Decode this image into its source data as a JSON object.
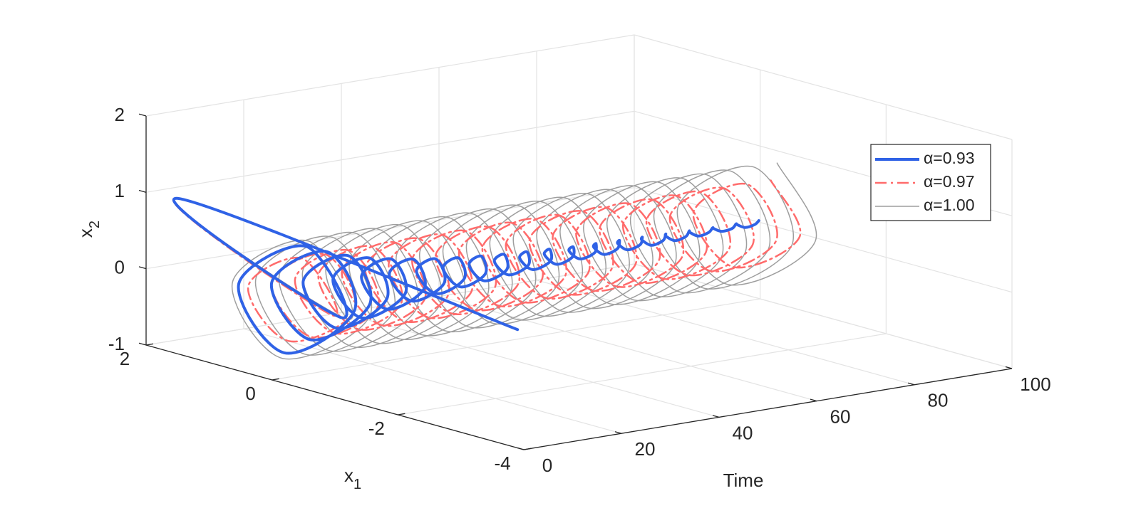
{
  "chart_data": {
    "type": "line3d",
    "xlabel": "Time",
    "ylabel": {
      "base": "x",
      "sub": "1"
    },
    "zlabel": {
      "base": "x",
      "sub": "2"
    },
    "xlim": [
      0,
      100
    ],
    "xticks": [
      0,
      20,
      40,
      60,
      80,
      100
    ],
    "ylim": [
      -4,
      2
    ],
    "yticks": [
      -4,
      -2,
      0,
      2
    ],
    "zlim": [
      -1,
      2
    ],
    "zticks": [
      -1,
      0,
      1,
      2
    ],
    "grid": true,
    "legend": "northeast",
    "x": [
      0,
      1.2,
      2.4,
      3.6,
      4.8,
      6,
      7.2,
      8.4,
      9.6,
      10.8,
      12,
      13.2,
      14.4,
      15.6,
      16.8,
      18,
      19.2,
      20.4,
      21.6,
      22.8,
      24,
      25.2,
      26.4,
      27.6,
      28.8,
      30,
      31.2,
      32.4,
      33.6,
      34.8,
      36,
      37.2,
      38.4,
      39.6,
      40.8,
      42,
      43.2,
      44.4,
      45.6,
      46.8,
      48,
      49.2,
      50.4,
      51.6,
      52.8,
      54,
      55.2,
      56.4,
      57.6,
      58.8,
      60,
      61.2,
      62.4,
      63.6,
      64.8,
      66,
      67.2,
      68.4,
      69.6,
      70.8,
      72,
      73.2,
      74.4,
      75.6,
      76.8,
      78,
      79.2,
      80.4,
      81.6,
      82.8,
      84,
      85.2,
      86.4,
      87.6,
      88.8,
      90,
      91.2,
      92.4,
      93.6,
      94.8,
      96,
      97.2,
      98.4,
      99.6
    ],
    "series": [
      {
        "name": "α=1.00",
        "color": "#9e9e9e",
        "linestyle": "solid",
        "linewidth": 1.5,
        "y": [
          -3.9,
          1.6,
          -1,
          -0.3,
          1,
          0.3,
          -1,
          -0.3,
          1,
          0.3,
          -1,
          -0.3,
          1,
          0.3,
          -1,
          -0.3,
          1,
          0.3,
          -1,
          -0.3,
          1,
          0.3,
          -1,
          -0.3,
          1,
          0.3,
          -1,
          -0.3,
          1,
          0.3,
          -1,
          -0.3,
          1,
          0.3,
          -1,
          -0.3,
          1,
          0.3,
          -1,
          -0.3,
          1,
          0.3,
          -1,
          -0.3,
          1,
          0.3,
          -1,
          -0.3,
          1,
          0.3,
          -1,
          -0.3,
          1,
          0.3,
          -1,
          -0.3,
          1,
          0.3,
          -1,
          -0.3,
          1,
          0.3,
          -1,
          -0.3,
          1,
          0.3,
          -1,
          -0.3,
          1,
          0.3,
          -1,
          -0.3,
          1,
          0.3,
          -1,
          -0.3,
          1,
          0.3,
          -1,
          -0.3,
          1,
          0.3,
          -1,
          -0.3
        ],
        "z": [
          0.55,
          1,
          0,
          0.85,
          0,
          -0.85,
          0,
          0.85,
          0,
          -0.85,
          0,
          0.85,
          0,
          -0.85,
          0,
          0.85,
          0,
          -0.85,
          0,
          0.85,
          0,
          -0.85,
          0,
          0.85,
          0,
          -0.85,
          0,
          0.85,
          0,
          -0.85,
          0,
          0.85,
          0,
          -0.85,
          0,
          0.85,
          0,
          -0.85,
          0,
          0.85,
          0,
          -0.85,
          0,
          0.85,
          0,
          -0.85,
          0,
          0.85,
          0,
          -0.85,
          0,
          0.85,
          0,
          -0.85,
          0,
          0.85,
          0,
          -0.85,
          0,
          0.85,
          0,
          -0.85,
          0,
          0.85,
          0,
          -0.85,
          0,
          0.85,
          0,
          -0.85,
          0,
          0.85,
          0,
          -0.85,
          0,
          0.85,
          0,
          -0.85,
          0,
          0.85,
          0,
          -0.85,
          0,
          0.85,
          0,
          -0.85,
          0,
          0.85
        ]
      },
      {
        "name": "α=0.97",
        "color": "#ff6b6b",
        "linestyle": "dashdot",
        "linewidth": 2.5,
        "y": [
          -3.9,
          1.6,
          -0.75,
          -0.2,
          0.75,
          0.2,
          -0.75,
          -0.2,
          0.75,
          0.2,
          -0.75,
          -0.2,
          0.75,
          0.2,
          -0.75,
          -0.2,
          0.75,
          0.2,
          -0.75,
          -0.2,
          0.75,
          0.2,
          -0.75,
          -0.2,
          0.75,
          0.2,
          -0.75,
          -0.2,
          0.75,
          0.2,
          -0.75,
          -0.2,
          0.75,
          0.2,
          -0.75,
          -0.2,
          0.75,
          0.2,
          -0.75,
          -0.2,
          0.75,
          0.2,
          -0.75,
          -0.2,
          0.75,
          0.2,
          -0.75,
          -0.2,
          0.75,
          0.2,
          -0.75,
          -0.2,
          0.75,
          0.2,
          -0.75,
          -0.2,
          0.75,
          0.2,
          -0.75,
          -0.2,
          0.75,
          0.2,
          -0.75,
          -0.2,
          0.75,
          0.2,
          -0.75,
          -0.2,
          0.75,
          0.2,
          -0.75,
          -0.2,
          0.75,
          0.2,
          -0.75,
          -0.2,
          0.75,
          0.2,
          -0.75,
          -0.2,
          0.75,
          0.2,
          -0.75,
          -0.2
        ],
        "z": [
          0.55,
          1,
          0,
          0.6,
          0,
          -0.6,
          0,
          0.6,
          0,
          -0.6,
          0,
          0.6,
          0,
          -0.6,
          0,
          0.6,
          0,
          -0.6,
          0,
          0.6,
          0,
          -0.6,
          0,
          0.6,
          0,
          -0.6,
          0,
          0.6,
          0,
          -0.6,
          0,
          0.6,
          0,
          -0.6,
          0,
          0.6,
          0,
          -0.6,
          0,
          0.6,
          0,
          -0.6,
          0,
          0.6,
          0,
          -0.6,
          0,
          0.6,
          0,
          -0.6,
          0,
          0.6,
          0,
          -0.6,
          0,
          0.6,
          0,
          -0.6,
          0,
          0.6,
          0,
          -0.6,
          0,
          0.6,
          0,
          -0.6,
          0,
          0.6,
          0,
          -0.6,
          0,
          0.6,
          0,
          -0.6,
          0,
          0.6,
          0,
          -0.6,
          0,
          0.6,
          0,
          -0.6,
          0,
          0.6,
          0,
          -0.6,
          0,
          0.6
        ]
      },
      {
        "name": "α=0.93",
        "color": "#2f62e6",
        "linestyle": "solid",
        "linewidth": 4,
        "y": [
          -3.9,
          1.6,
          -0.9,
          -0.27,
          0.9,
          0.27,
          -0.75,
          -0.23,
          0.75,
          0.23,
          -0.62,
          -0.19,
          0.62,
          0.19,
          -0.52,
          -0.16,
          0.52,
          0.16,
          -0.44,
          -0.13,
          0.44,
          0.13,
          -0.37,
          -0.11,
          0.37,
          0.11,
          -0.31,
          -0.09,
          0.31,
          0.09,
          -0.26,
          -0.08,
          0.26,
          0.08,
          -0.22,
          -0.07,
          0.22,
          0.07,
          -0.19,
          -0.06,
          0.19,
          0.06,
          -0.16,
          -0.05,
          0.16,
          0.05,
          -0.14,
          -0.04,
          0.14,
          0.04,
          -0.12,
          -0.04,
          0.12,
          0.04,
          -0.1,
          -0.03,
          0.1,
          0.03,
          -0.09,
          -0.03,
          0.09,
          0.03,
          -0.08,
          -0.02,
          0.08,
          0.02,
          -0.07,
          -0.02,
          0.07,
          0.02,
          -0.06,
          -0.02,
          0.06,
          0.02,
          -0.05,
          -0.02,
          0.05,
          0.02,
          -0.05,
          -0.02,
          0.05,
          0.02,
          -0.04,
          -0.01
        ],
        "z": [
          0.55,
          1,
          0,
          0.77,
          0,
          -0.77,
          0,
          0.64,
          0,
          -0.64,
          0,
          0.53,
          0,
          -0.53,
          0,
          0.44,
          0,
          -0.44,
          0,
          0.37,
          0,
          -0.37,
          0,
          0.31,
          0,
          -0.31,
          0,
          0.26,
          0,
          -0.26,
          0,
          0.22,
          0,
          -0.22,
          0,
          0.19,
          0,
          -0.19,
          0,
          0.16,
          0,
          -0.16,
          0,
          0.14,
          0,
          -0.14,
          0,
          0.12,
          0,
          -0.12,
          0,
          0.1,
          0,
          -0.1,
          0,
          0.09,
          0,
          -0.09,
          0,
          0.08,
          0,
          -0.08,
          0,
          0.07,
          0,
          -0.07,
          0,
          0.06,
          0,
          -0.06,
          0,
          0.05,
          0,
          -0.05,
          0,
          0.04,
          0,
          -0.04,
          0,
          0.04,
          0,
          -0.04,
          0,
          0.03
        ]
      }
    ]
  }
}
